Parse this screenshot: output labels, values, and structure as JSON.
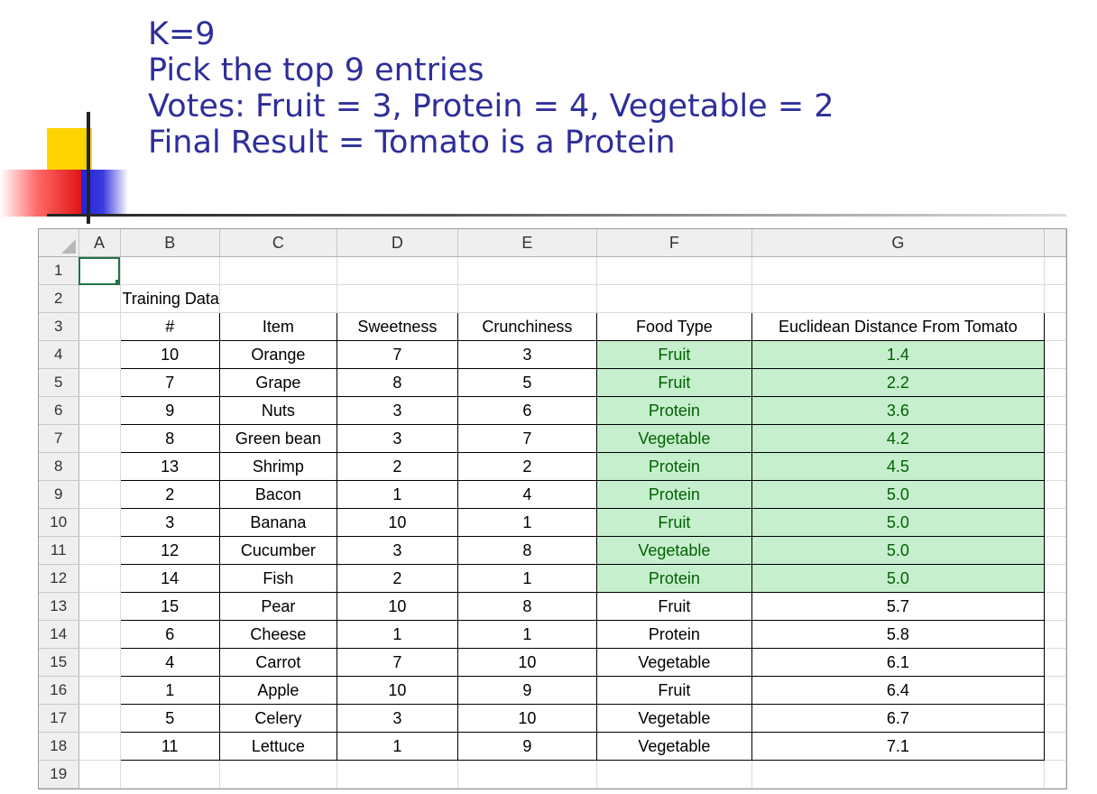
{
  "slide": {
    "lines": [
      "K=9",
      "Pick the top 9 entries",
      "Votes: Fruit = 3, Protein = 4, Vegetable = 2",
      "Final Result = Tomato is a Protein"
    ]
  },
  "colors": {
    "title": "#2e2e9a",
    "highlight_fill": "#c6efce",
    "highlight_text": "#006100",
    "active_cell": "#217346"
  },
  "spreadsheet": {
    "column_headers": [
      "A",
      "B",
      "C",
      "D",
      "E",
      "F",
      "G"
    ],
    "row_numbers": [
      "1",
      "2",
      "3",
      "4",
      "5",
      "6",
      "7",
      "8",
      "9",
      "10",
      "11",
      "12",
      "13",
      "14",
      "15",
      "16",
      "17",
      "18",
      "19"
    ],
    "section_label": "Training Data",
    "headers": [
      "#",
      "Item",
      "Sweetness",
      "Crunchiness",
      "Food Type",
      "Euclidean Distance From Tomato"
    ],
    "rows": [
      [
        "10",
        "Orange",
        "7",
        "3",
        "Fruit",
        "1.4"
      ],
      [
        "7",
        "Grape",
        "8",
        "5",
        "Fruit",
        "2.2"
      ],
      [
        "9",
        "Nuts",
        "3",
        "6",
        "Protein",
        "3.6"
      ],
      [
        "8",
        "Green bean",
        "3",
        "7",
        "Vegetable",
        "4.2"
      ],
      [
        "13",
        "Shrimp",
        "2",
        "2",
        "Protein",
        "4.5"
      ],
      [
        "2",
        "Bacon",
        "1",
        "4",
        "Protein",
        "5.0"
      ],
      [
        "3",
        "Banana",
        "10",
        "1",
        "Fruit",
        "5.0"
      ],
      [
        "12",
        "Cucumber",
        "3",
        "8",
        "Vegetable",
        "5.0"
      ],
      [
        "14",
        "Fish",
        "2",
        "1",
        "Protein",
        "5.0"
      ],
      [
        "15",
        "Pear",
        "10",
        "8",
        "Fruit",
        "5.7"
      ],
      [
        "6",
        "Cheese",
        "1",
        "1",
        "Protein",
        "5.8"
      ],
      [
        "4",
        "Carrot",
        "7",
        "10",
        "Vegetable",
        "6.1"
      ],
      [
        "1",
        "Apple",
        "10",
        "9",
        "Fruit",
        "6.4"
      ],
      [
        "5",
        "Celery",
        "3",
        "10",
        "Vegetable",
        "6.7"
      ],
      [
        "11",
        "Lettuce",
        "1",
        "9",
        "Vegetable",
        "7.1"
      ]
    ],
    "highlighted_row_count": 9
  }
}
